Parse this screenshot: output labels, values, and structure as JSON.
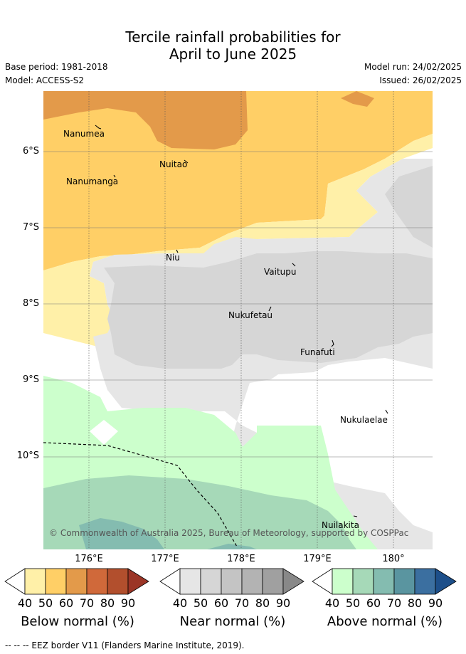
{
  "header": {
    "title_line1": "Tercile rainfall probabilities for",
    "title_line2": "April to June 2025",
    "base_period": "Base period: 1981-2018",
    "model": "Model: ACCESS-S2",
    "model_run": "Model run: 24/02/2025",
    "issued": "Issued: 26/02/2025"
  },
  "map": {
    "y_ticks": [
      "6°S",
      "7°S",
      "8°S",
      "9°S",
      "10°S"
    ],
    "x_ticks": [
      "176°E",
      "177°E",
      "178°E",
      "179°E",
      "180°"
    ],
    "places": [
      "Nanumea",
      "Nuitao",
      "Nanumanga",
      "Niu",
      "Vaitupu",
      "Nukufetau",
      "Funafuti",
      "Nukulaelae",
      "Nuilakita"
    ],
    "copyright": "© Commonwealth of Australia 2025, Bureau of Meteorology, supported by COSPPac"
  },
  "colorbars": [
    {
      "title": "Below normal (%)",
      "ticks": [
        "40",
        "50",
        "60",
        "70",
        "80",
        "90"
      ],
      "colors": [
        "#fff0a8",
        "#ffcf66",
        "#e39a4a",
        "#d0693a",
        "#b24f2d",
        "#9b3526"
      ]
    },
    {
      "title": "Near normal (%)",
      "ticks": [
        "40",
        "50",
        "60",
        "70",
        "80",
        "90"
      ],
      "colors": [
        "#e6e6e6",
        "#d6d6d6",
        "#c4c4c4",
        "#b3b3b3",
        "#a0a0a0",
        "#888888"
      ]
    },
    {
      "title": "Above normal (%)",
      "ticks": [
        "40",
        "50",
        "60",
        "70",
        "80",
        "90"
      ],
      "colors": [
        "#ccffcc",
        "#a6d9b8",
        "#84bcb0",
        "#5a95a0",
        "#3b6fa0",
        "#1d4f8a"
      ]
    }
  ],
  "footer": {
    "legend_line": "--  --  -- EEZ border V11 (Flanders Marine Institute, 2019)."
  }
}
